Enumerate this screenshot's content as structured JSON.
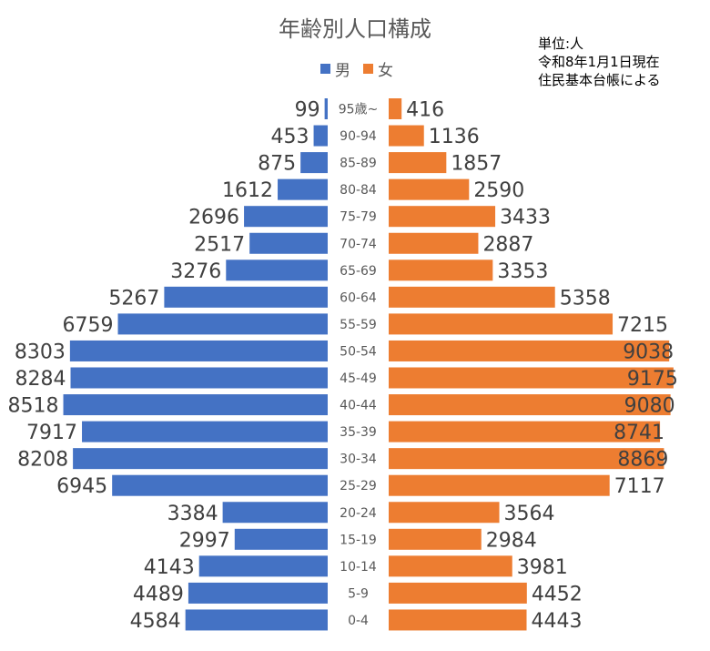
{
  "title": "年齢別人口構成",
  "note": [
    "単位:人",
    "令和8年1月1日現在",
    "住民基本台帳による"
  ],
  "legend": {
    "male": "男",
    "female": "女"
  },
  "colors": {
    "male": "#4472c4",
    "female": "#ed7d31",
    "label": "#404040",
    "axis": "#595959"
  },
  "chart_data": {
    "type": "bar",
    "orientation": "horizontal-population-pyramid",
    "title": "年齢別人口構成",
    "categories": [
      "95歳~",
      "90-94",
      "85-89",
      "80-84",
      "75-79",
      "70-74",
      "65-69",
      "60-64",
      "55-59",
      "50-54",
      "45-49",
      "40-44",
      "35-39",
      "30-34",
      "25-29",
      "20-24",
      "15-19",
      "10-14",
      "5-9",
      "0-4"
    ],
    "series": [
      {
        "name": "男",
        "values": [
          99,
          453,
          875,
          1612,
          2696,
          2517,
          3276,
          5267,
          6759,
          8303,
          8284,
          8518,
          7917,
          8208,
          6945,
          3384,
          2997,
          4143,
          4489,
          4584
        ]
      },
      {
        "name": "女",
        "values": [
          416,
          1136,
          1857,
          2590,
          3433,
          2887,
          3353,
          5358,
          7215,
          9038,
          9175,
          9080,
          8741,
          8869,
          7117,
          3564,
          2984,
          3981,
          4452,
          4443
        ]
      }
    ],
    "legend_position": "top",
    "grid": false
  }
}
